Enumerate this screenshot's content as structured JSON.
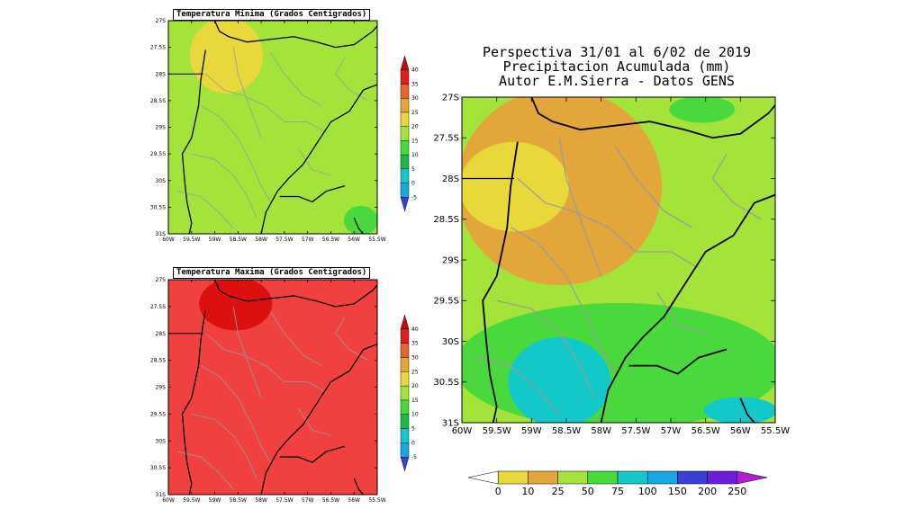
{
  "chart_data": [
    {
      "type": "heatmap",
      "title": "Temperatura Minima (Grados Centigrados)",
      "x_ticks": [
        "60W",
        "59.5W",
        "59W",
        "58.5W",
        "58W",
        "57.5W",
        "57W",
        "56.5W",
        "56W",
        "55.5W"
      ],
      "y_ticks": [
        "27S",
        "27.5S",
        "28S",
        "28.5S",
        "29S",
        "29.5S",
        "30S",
        "30.5S",
        "31S"
      ],
      "xlim": [
        -60,
        -55.5
      ],
      "ylim": [
        -31,
        -27
      ],
      "colorbar": {
        "levels": [
          "-5",
          "0",
          "5",
          "10",
          "15",
          "20",
          "25",
          "30",
          "35",
          "40"
        ],
        "colors": [
          "#3a3fd6",
          "#1aa6e0",
          "#12c8c8",
          "#1cb84a",
          "#49d93c",
          "#a4e43a",
          "#e8d83c",
          "#e2a63a",
          "#e2652f",
          "#d92020",
          "#c80a0a"
        ]
      },
      "regions": [
        {
          "level": "15-20",
          "color": "#a4e43a",
          "description": "most of domain"
        },
        {
          "level": "20-25",
          "color": "#e8d83c",
          "lon": [
            -59.5,
            -58.0
          ],
          "lat": [
            -28.3,
            -27.0
          ]
        },
        {
          "level": "10-15",
          "color": "#49d93c",
          "lon": [
            -56.2,
            -55.5
          ],
          "lat": [
            -31.0,
            -30.5
          ]
        }
      ]
    },
    {
      "type": "heatmap",
      "title": "Temperatura Maxima (Grados Centigrados)",
      "x_ticks": [
        "60W",
        "59.5W",
        "59W",
        "58.5W",
        "58W",
        "57.5W",
        "57W",
        "56.5W",
        "56W",
        "55.5W"
      ],
      "y_ticks": [
        "27S",
        "27.5S",
        "28S",
        "28.5S",
        "29S",
        "29.5S",
        "30S",
        "30.5S",
        "31S"
      ],
      "xlim": [
        -60,
        -55.5
      ],
      "ylim": [
        -31,
        -27
      ],
      "colorbar": {
        "levels": [
          "-5",
          "0",
          "5",
          "10",
          "15",
          "20",
          "25",
          "30",
          "35",
          "40"
        ],
        "colors": [
          "#3a3fd6",
          "#1aa6e0",
          "#12c8c8",
          "#1cb84a",
          "#49d93c",
          "#a4e43a",
          "#e8d83c",
          "#e2a63a",
          "#e2652f",
          "#d92020",
          "#c80a0a"
        ]
      },
      "regions": [
        {
          "level": "35-40",
          "color": "#f04040",
          "description": "most of domain"
        },
        {
          "level": "40+",
          "color": "#dd1010",
          "lon": [
            -59.3,
            -57.8
          ],
          "lat": [
            -27.9,
            -27.0
          ]
        }
      ]
    },
    {
      "type": "heatmap",
      "title": "Perspectiva 31/01 al 6/02 de 2019\nPrecipitacion Acumulada (mm)\nAutor E.M.Sierra - Datos GENS",
      "x_ticks": [
        "60W",
        "59.5W",
        "59W",
        "58.5W",
        "58W",
        "57.5W",
        "57W",
        "56.5W",
        "56W",
        "55.5W"
      ],
      "y_ticks": [
        "27S",
        "27.5S",
        "28S",
        "28.5S",
        "29S",
        "29.5S",
        "30S",
        "30.5S",
        "31S"
      ],
      "xlim": [
        -60,
        -55.5
      ],
      "ylim": [
        -31,
        -27
      ],
      "colorbar": {
        "levels": [
          "0",
          "10",
          "25",
          "50",
          "75",
          "100",
          "150",
          "200",
          "250"
        ],
        "colors": [
          "#ffffff",
          "#e8d83c",
          "#e2a63a",
          "#a4e43a",
          "#49d93c",
          "#12c8c8",
          "#1aa6e0",
          "#3a3fd6",
          "#6a1fd6",
          "#b020d0"
        ]
      },
      "regions": [
        {
          "level": "25-50",
          "color": "#a4e43a",
          "description": "background"
        },
        {
          "level": "10-25",
          "color": "#e2a63a",
          "lon": [
            -60,
            -57.2
          ],
          "lat": [
            -29.2,
            -27.0
          ]
        },
        {
          "level": "0-10",
          "color": "#e8d83c",
          "lon": [
            -60,
            -58.5
          ],
          "lat": [
            -28.6,
            -27.6
          ]
        },
        {
          "level": "50-75",
          "color": "#49d93c",
          "lon": [
            -60,
            -55.5
          ],
          "lat": [
            -31.0,
            -29.6
          ]
        },
        {
          "level": "75-100",
          "color": "#12c8c8",
          "lon": [
            -59.3,
            -57.9
          ],
          "lat": [
            -31.0,
            -30.0
          ]
        },
        {
          "level": "75-100",
          "color": "#12c8c8",
          "lon": [
            -56.5,
            -55.5
          ],
          "lat": [
            -31.0,
            -30.7
          ]
        },
        {
          "level": "50-75",
          "color": "#49d93c",
          "lon": [
            -57.0,
            -56.1
          ],
          "lat": [
            -27.3,
            -27.0
          ]
        }
      ]
    }
  ]
}
